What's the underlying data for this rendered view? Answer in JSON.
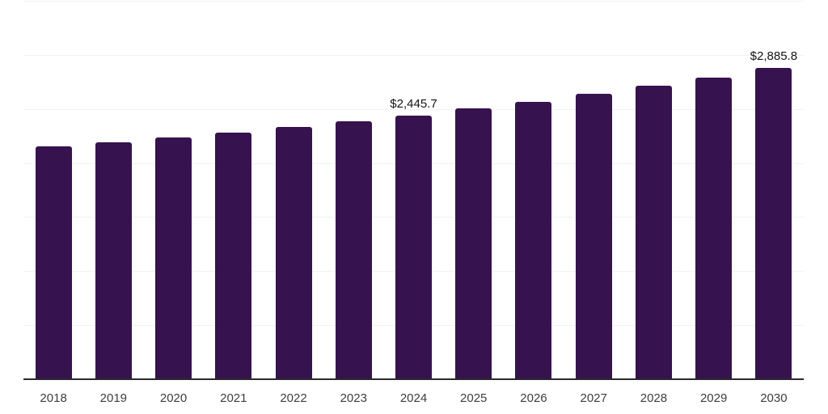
{
  "chart_data": {
    "type": "bar",
    "title": "",
    "xlabel": "",
    "ylabel": "",
    "categories": [
      "2018",
      "2019",
      "2020",
      "2021",
      "2022",
      "2023",
      "2024",
      "2025",
      "2026",
      "2027",
      "2028",
      "2029",
      "2030"
    ],
    "values": [
      2160,
      2200,
      2240,
      2290,
      2340,
      2390,
      2445.7,
      2510,
      2570,
      2645,
      2725,
      2800,
      2885.8
    ],
    "value_labels": {
      "2024": "$2,445.7",
      "2030": "$2,885.8"
    },
    "ylim": [
      0,
      3500
    ],
    "gridline_step": 500,
    "grid": true,
    "legend": false,
    "y_axis_labels_visible": false,
    "colors": {
      "bar": "#36124F",
      "axis_line": "#2b2b2b",
      "gridline": "#f1f1f1",
      "tick_label": "#3d3d3d",
      "value_label": "#141414",
      "background": "#ffffff"
    }
  }
}
